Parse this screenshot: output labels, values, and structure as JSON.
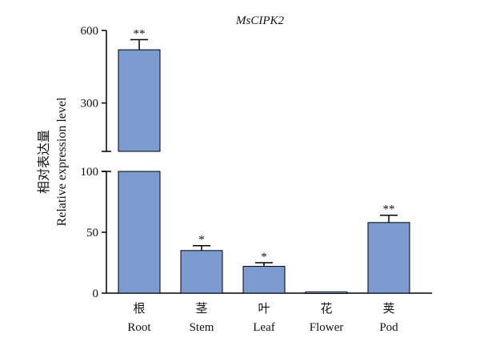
{
  "chart_data": {
    "type": "bar",
    "title": "MsCIPK2",
    "ylabel_cn": "相对表达量",
    "ylabel": "Relative expression level",
    "categories_cn": [
      "根",
      "茎",
      "叶",
      "花",
      "荚"
    ],
    "categories": [
      "Root",
      "Stem",
      "Leaf",
      "Flower",
      "Pod"
    ],
    "values": [
      520,
      35,
      22,
      1,
      58
    ],
    "errors": [
      42,
      4,
      3,
      0,
      6
    ],
    "significance": [
      "**",
      "*",
      "*",
      "",
      "**"
    ],
    "y_axis_lower": {
      "range": [
        0,
        100
      ],
      "ticks": [
        0,
        50,
        100
      ]
    },
    "y_axis_upper": {
      "range": [
        100,
        600
      ],
      "ticks": [
        300,
        600
      ]
    },
    "axis_break": true,
    "bar_color": "#7b9bd1",
    "bar_edge_color": "#000000"
  }
}
